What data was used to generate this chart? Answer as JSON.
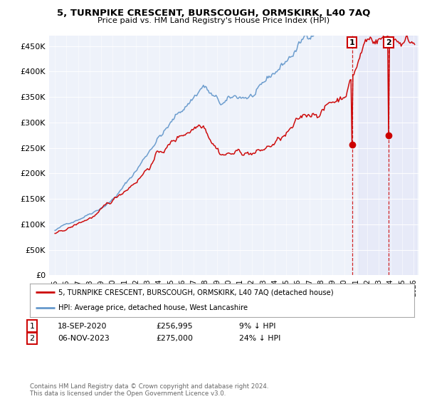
{
  "title": "5, TURNPIKE CRESCENT, BURSCOUGH, ORMSKIRK, L40 7AQ",
  "subtitle": "Price paid vs. HM Land Registry's House Price Index (HPI)",
  "yticks": [
    0,
    50000,
    100000,
    150000,
    200000,
    250000,
    300000,
    350000,
    400000,
    450000
  ],
  "ylim": [
    0,
    470000
  ],
  "sale1_price": 256995,
  "sale2_price": 275000,
  "sale1_hpi_diff": "9% ↓ HPI",
  "sale2_hpi_diff": "24% ↓ HPI",
  "legend_line1": "5, TURNPIKE CRESCENT, BURSCOUGH, ORMSKIRK, L40 7AQ (detached house)",
  "legend_line2": "HPI: Average price, detached house, West Lancashire",
  "footer": "Contains HM Land Registry data © Crown copyright and database right 2024.\nThis data is licensed under the Open Government Licence v3.0.",
  "house_color": "#cc0000",
  "hpi_color": "#6699cc",
  "background_color": "#ffffff",
  "plot_bg_color": "#eef2fa",
  "annotation1_label_text": "18-SEP-2020",
  "annotation1_price_text": "£256,995",
  "annotation2_label_text": "06-NOV-2023",
  "annotation2_price_text": "£275,000"
}
